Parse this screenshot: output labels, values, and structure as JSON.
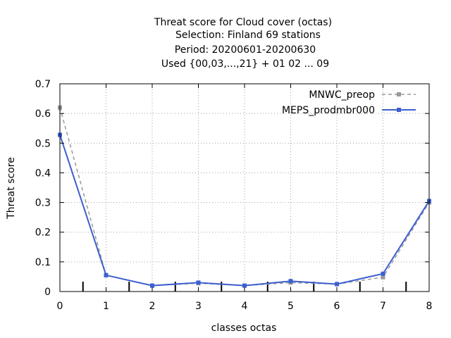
{
  "chart_data": {
    "type": "line",
    "title_lines": [
      "Threat score  for Cloud cover (octas)",
      "Selection: Finland     69 stations",
      "Period: 20200601-20200630",
      "Used {00,03,...,21} + 01 02 ... 09"
    ],
    "xlabel": "classes octas",
    "ylabel": "Threat score",
    "x": [
      0,
      1,
      2,
      3,
      4,
      5,
      6,
      7,
      8
    ],
    "xlim": [
      0,
      8
    ],
    "ylim": [
      0,
      0.7
    ],
    "xticks": [
      "0",
      "1",
      "2",
      "3",
      "4",
      "5",
      "6",
      "7",
      "8"
    ],
    "yticks": [
      "0",
      "0.1",
      "0.2",
      "0.3",
      "0.4",
      "0.5",
      "0.6",
      "0.7"
    ],
    "grid": true,
    "legend_position": "top-right",
    "series": [
      {
        "name": "MNWC_preop",
        "color": "#999999",
        "dashed": true,
        "values": [
          0.62,
          0.055,
          0.02,
          0.028,
          0.02,
          0.03,
          0.025,
          0.048,
          0.3
        ]
      },
      {
        "name": "MEPS_prodmbr000",
        "color": "#3d5fcf",
        "dashed": false,
        "values": [
          0.528,
          0.055,
          0.02,
          0.03,
          0.02,
          0.035,
          0.025,
          0.06,
          0.305
        ]
      }
    ]
  }
}
